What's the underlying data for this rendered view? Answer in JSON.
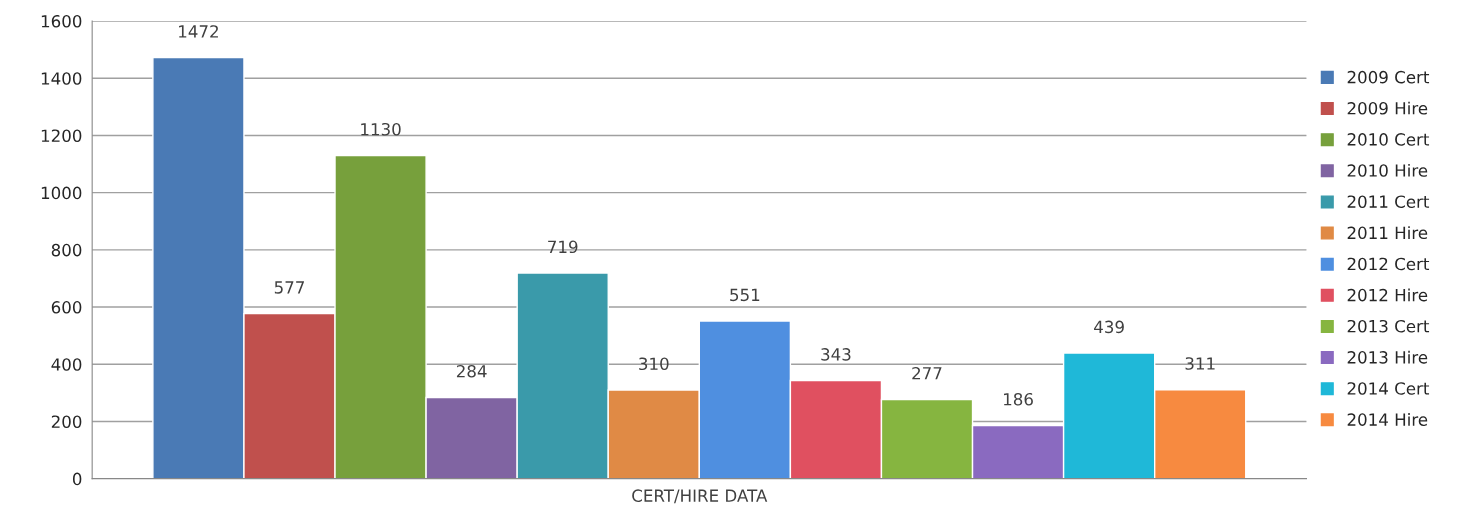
{
  "chart_data": {
    "type": "bar",
    "xlabel": "CERT/HIRE DATA",
    "categories": [
      null
    ],
    "series": [
      {
        "name": "2009 Cert",
        "color": "#4a7ab5",
        "values": [
          1472
        ]
      },
      {
        "name": "2009 Hire",
        "color": "#c0504d",
        "values": [
          577
        ]
      },
      {
        "name": "2010 Cert",
        "color": "#77a03c",
        "values": [
          1130
        ]
      },
      {
        "name": "2010 Hire",
        "color": "#8064a2",
        "values": [
          284
        ]
      },
      {
        "name": "2011 Cert",
        "color": "#3a9aaa",
        "values": [
          719
        ]
      },
      {
        "name": "2011 Hire",
        "color": "#e08a45",
        "values": [
          310
        ]
      },
      {
        "name": "2012 Cert",
        "color": "#4f8fe0",
        "values": [
          551
        ]
      },
      {
        "name": "2012 Hire",
        "color": "#e05060",
        "values": [
          343
        ]
      },
      {
        "name": "2013 Cert",
        "color": "#86b540",
        "values": [
          277
        ]
      },
      {
        "name": "2013 Hire",
        "color": "#8a6ac0",
        "values": [
          186
        ]
      },
      {
        "name": "2014 Cert",
        "color": "#1fb8d8",
        "values": [
          439
        ]
      },
      {
        "name": "2014 Hire",
        "color": "#f78a40",
        "values": [
          311
        ]
      }
    ],
    "ylim": [
      0,
      1600
    ],
    "yticks": [
      0,
      200,
      400,
      600,
      800,
      1000,
      1200,
      1400,
      1600
    ],
    "grid": "y",
    "legend": "right",
    "data_labels": true
  }
}
